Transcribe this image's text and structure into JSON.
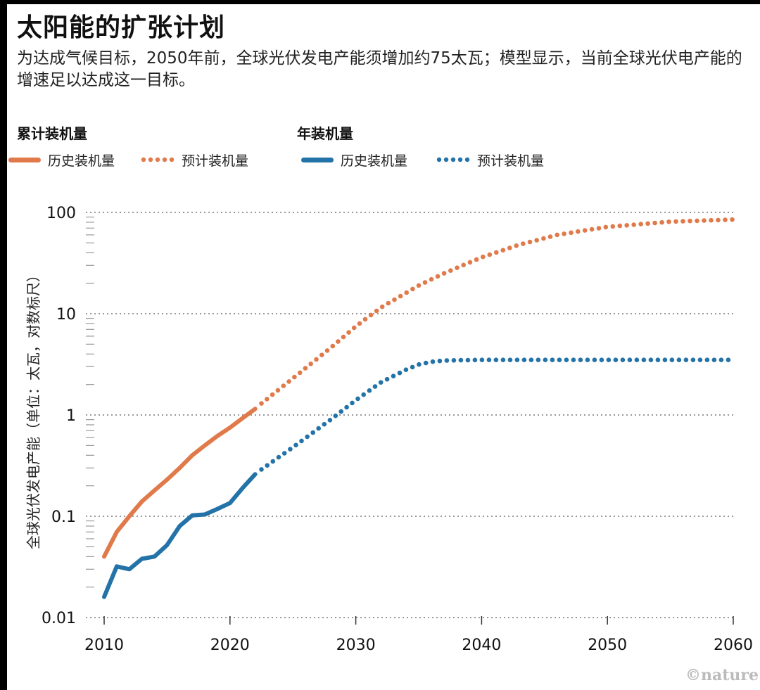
{
  "title": "太阳能的扩张计划",
  "subtitle": "为达成气候目标，2050年前，全球光伏发电产能须增加约75太瓦；模型显示，当前全球光伏电产能的增速足以达成这一目标。",
  "legend": {
    "groups": [
      {
        "title": "累计装机量",
        "items": [
          {
            "label": "历史装机量",
            "color": "#e07a4a",
            "style": "solid"
          },
          {
            "label": "预计装机量",
            "color": "#e07a4a",
            "style": "dotted"
          }
        ]
      },
      {
        "title": "年装机量",
        "items": [
          {
            "label": "历史装机量",
            "color": "#2373a8",
            "style": "solid"
          },
          {
            "label": "预计装机量",
            "color": "#2373a8",
            "style": "dotted"
          }
        ]
      }
    ]
  },
  "credit": "©nature",
  "chart_data": {
    "type": "line",
    "title": "太阳能的扩张计划",
    "ylabel": "全球光伏发电产能（单位：太瓦，对数标尺）",
    "xlabel": "",
    "x_scale": "linear",
    "y_scale": "log",
    "xlim": [
      2010,
      2060
    ],
    "ylim": [
      0.01,
      100
    ],
    "x_ticks": [
      "2010",
      "2020",
      "2030",
      "2040",
      "2050",
      "2060"
    ],
    "y_ticks": [
      "0.01",
      "0.1",
      "1",
      "10",
      "100"
    ],
    "grid": "horizontal-dotted",
    "series": [
      {
        "name": "累计装机量 历史装机量",
        "color": "#e07a4a",
        "style": "solid",
        "x": [
          2010,
          2011,
          2012,
          2013,
          2014,
          2015,
          2016,
          2017,
          2018,
          2019,
          2020,
          2021,
          2022
        ],
        "y": [
          0.04,
          0.07,
          0.1,
          0.14,
          0.18,
          0.23,
          0.3,
          0.4,
          0.5,
          0.62,
          0.75,
          0.93,
          1.15
        ]
      },
      {
        "name": "累计装机量 预计装机量",
        "color": "#e07a4a",
        "style": "dotted",
        "x": [
          2022.5,
          2025,
          2028,
          2030,
          2032,
          2035,
          2037,
          2040,
          2043,
          2046,
          2050,
          2055,
          2060
        ],
        "y": [
          1.3,
          2.3,
          4.6,
          7.5,
          11.5,
          19,
          25,
          36,
          48,
          60,
          72,
          81,
          85
        ]
      },
      {
        "name": "年装机量 历史装机量",
        "color": "#2373a8",
        "style": "solid",
        "x": [
          2010,
          2011,
          2012,
          2013,
          2014,
          2015,
          2016,
          2017,
          2018,
          2019,
          2020,
          2021,
          2022
        ],
        "y": [
          0.016,
          0.032,
          0.03,
          0.038,
          0.04,
          0.052,
          0.08,
          0.102,
          0.104,
          0.118,
          0.135,
          0.19,
          0.26
        ]
      },
      {
        "name": "年装机量 预计装机量",
        "color": "#2373a8",
        "style": "dotted",
        "x": [
          2022.5,
          2025,
          2028,
          2030,
          2032,
          2034,
          2035,
          2036,
          2037,
          2040,
          2050,
          2060
        ],
        "y": [
          0.29,
          0.48,
          0.9,
          1.4,
          2.1,
          2.8,
          3.15,
          3.35,
          3.45,
          3.5,
          3.5,
          3.5
        ]
      }
    ]
  }
}
